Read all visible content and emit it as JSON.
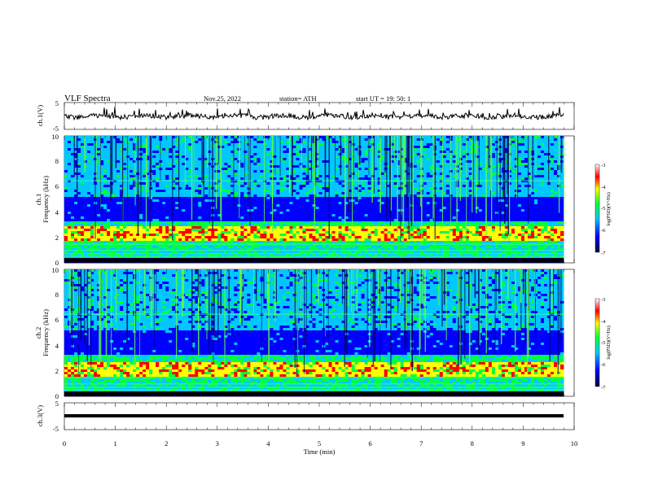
{
  "header": {
    "title": "VLF  Spectra",
    "date": "Nov.25, 2022",
    "station": "station= ATH",
    "start": "start  UT  =    19: 50: 1"
  },
  "colors": {
    "trace": "#000000",
    "colormap": [
      "#000040",
      "#0000ff",
      "#00c8ff",
      "#00ff40",
      "#ffff00",
      "#ff0000",
      "#ffffff"
    ]
  },
  "chart_data": [
    {
      "type": "line",
      "id": "ch1",
      "ylabel": "ch.1(V)",
      "ylim": [
        -5,
        5
      ],
      "yticks": [
        "5",
        "-5"
      ],
      "xlim": [
        0,
        10
      ],
      "series": [
        {
          "values_approx": "noisy trace around 0 V, amplitude ~1 V, occasional spikes",
          "mean": 0.2
        }
      ]
    },
    {
      "type": "heatmap",
      "id": "ch1-spec",
      "ylabel": "ch.1\nFrequency  (kHz)",
      "ylim": [
        0,
        10
      ],
      "yticks": [
        "0",
        "2",
        "4",
        "6",
        "8",
        "10"
      ],
      "xlim": [
        0,
        10
      ],
      "colorbar": {
        "label": "log(PSD)(V²/Hz)",
        "range": [
          -7,
          -3
        ],
        "ticks": [
          "-3",
          "-4",
          "-5",
          "-6",
          "-7"
        ]
      },
      "features": [
        "strong emission band near 2-2.5 kHz",
        "broadband sferics across 4-10 kHz",
        "low-frequency lines below 1 kHz"
      ]
    },
    {
      "type": "heatmap",
      "id": "ch2-spec",
      "ylabel": "ch.2\nFrequency  (kHz)",
      "ylim": [
        0,
        10
      ],
      "yticks": [
        "0",
        "2",
        "4",
        "6",
        "8",
        "10"
      ],
      "xlim": [
        0,
        10
      ],
      "colorbar": {
        "label": "log(PSD)(V²/Hz)",
        "range": [
          -7,
          -3
        ],
        "ticks": [
          "-3",
          "-4",
          "-5",
          "-6",
          "-7"
        ]
      },
      "features": [
        "strong emission band near 2 kHz",
        "broadband sferics across 4-10 kHz",
        "low-frequency lines below 1 kHz"
      ]
    },
    {
      "type": "line",
      "id": "ch3",
      "ylabel": "ch.3(V)",
      "ylim": [
        -5,
        5
      ],
      "yticks": [
        "5",
        "-5"
      ],
      "xlim": [
        0,
        10
      ],
      "series": [
        {
          "values_approx": "flat thick trace",
          "mean": -2.0
        }
      ]
    }
  ],
  "xaxis": {
    "label": "Time  (min)",
    "ticks": [
      "0",
      "1",
      "2",
      "3",
      "4",
      "5",
      "6",
      "7",
      "8",
      "9",
      "10"
    ]
  }
}
